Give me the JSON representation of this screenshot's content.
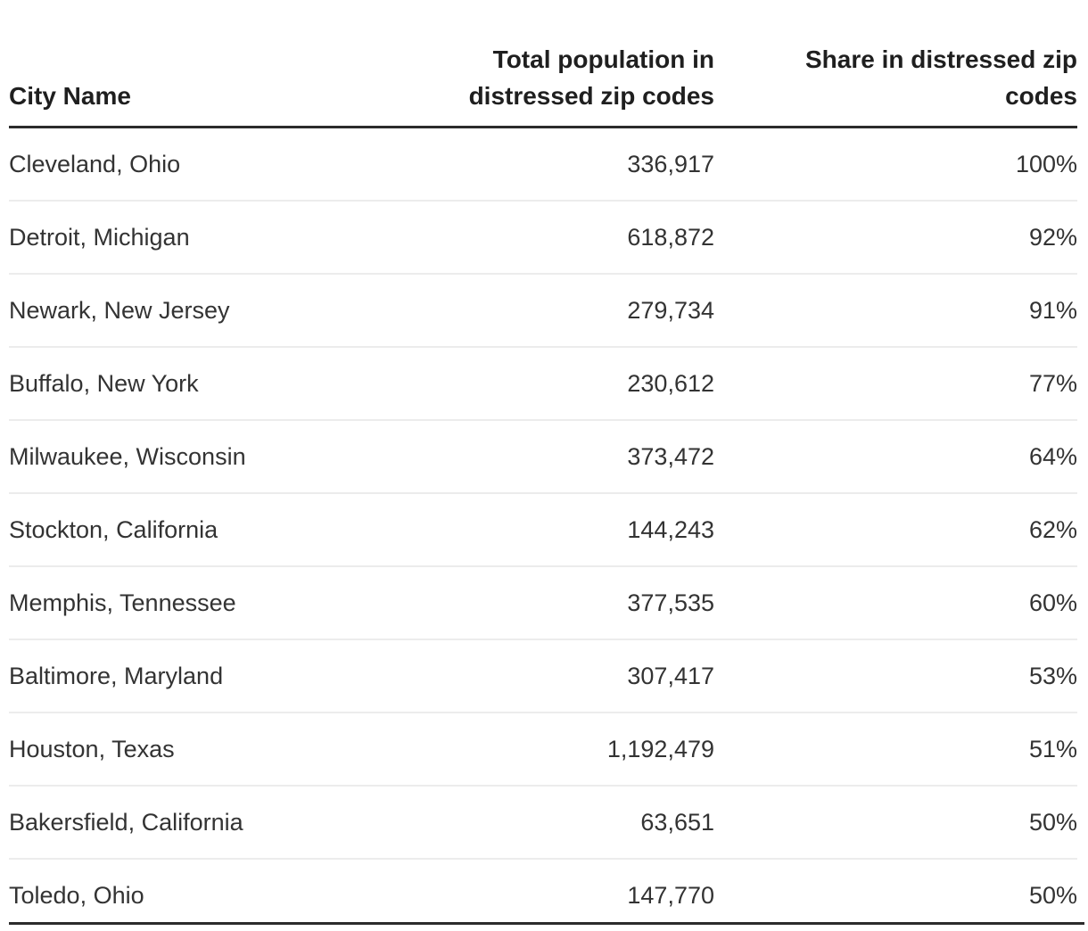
{
  "table": {
    "columns": [
      {
        "id": "city",
        "label": "City Name",
        "lines": [
          "City Name"
        ],
        "align": "left"
      },
      {
        "id": "population",
        "label": "Total population in distressed zip codes",
        "lines": [
          "Total population in",
          "distressed zip codes"
        ],
        "align": "right"
      },
      {
        "id": "share",
        "label": "Share in distressed zip codes",
        "lines": [
          "Share in distressed zip",
          "codes"
        ],
        "align": "right"
      }
    ],
    "rows": [
      {
        "city": "Cleveland, Ohio",
        "population": "336,917",
        "share": "100%"
      },
      {
        "city": "Detroit, Michigan",
        "population": "618,872",
        "share": "92%"
      },
      {
        "city": "Newark, New Jersey",
        "population": "279,734",
        "share": "91%"
      },
      {
        "city": "Buffalo, New York",
        "population": "230,612",
        "share": "77%"
      },
      {
        "city": "Milwaukee, Wisconsin",
        "population": "373,472",
        "share": "64%"
      },
      {
        "city": "Stockton, California",
        "population": "144,243",
        "share": "62%"
      },
      {
        "city": "Memphis, Tennessee",
        "population": "377,535",
        "share": "60%"
      },
      {
        "city": "Baltimore, Maryland",
        "population": "307,417",
        "share": "53%"
      },
      {
        "city": "Houston, Texas",
        "population": "1,192,479",
        "share": "51%"
      },
      {
        "city": "Bakersfield, California",
        "population": "63,651",
        "share": "50%"
      },
      {
        "city": "Toledo, Ohio",
        "population": "147,770",
        "share": "50%"
      }
    ]
  },
  "chart_data": {
    "type": "table",
    "columns": [
      "City Name",
      "Total population in distressed zip codes",
      "Share in distressed zip codes"
    ],
    "rows": [
      [
        "Cleveland, Ohio",
        336917,
        "100%"
      ],
      [
        "Detroit, Michigan",
        618872,
        "92%"
      ],
      [
        "Newark, New Jersey",
        279734,
        "91%"
      ],
      [
        "Buffalo, New York",
        230612,
        "77%"
      ],
      [
        "Milwaukee, Wisconsin",
        373472,
        "64%"
      ],
      [
        "Stockton, California",
        144243,
        "62%"
      ],
      [
        "Memphis, Tennessee",
        377535,
        "60%"
      ],
      [
        "Baltimore, Maryland",
        307417,
        "53%"
      ],
      [
        "Houston, Texas",
        1192479,
        "51%"
      ],
      [
        "Bakersfield, California",
        63651,
        "50%"
      ],
      [
        "Toledo, Ohio",
        147770,
        "50%"
      ]
    ]
  },
  "colors": {
    "background": "#ffffff",
    "header_text": "#1f1f1f",
    "body_text": "#333333",
    "header_rule": "#2b2b2b",
    "row_divider": "#ececec",
    "bottom_rule": "#2b2b2b"
  }
}
